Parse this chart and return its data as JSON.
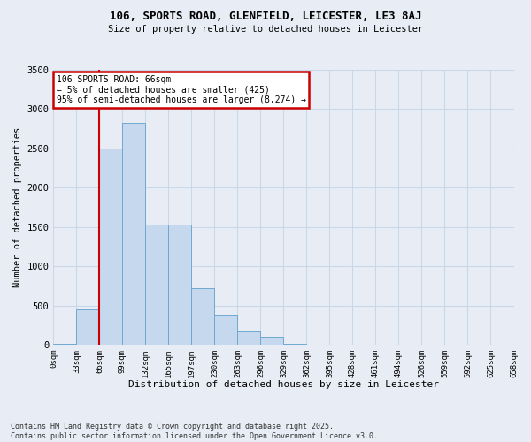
{
  "title1": "106, SPORTS ROAD, GLENFIELD, LEICESTER, LE3 8AJ",
  "title2": "Size of property relative to detached houses in Leicester",
  "xlabel": "Distribution of detached houses by size in Leicester",
  "ylabel": "Number of detached properties",
  "bin_labels": [
    "0sqm",
    "33sqm",
    "66sqm",
    "99sqm",
    "132sqm",
    "165sqm",
    "197sqm",
    "230sqm",
    "263sqm",
    "296sqm",
    "329sqm",
    "362sqm",
    "395sqm",
    "428sqm",
    "461sqm",
    "494sqm",
    "526sqm",
    "559sqm",
    "592sqm",
    "625sqm",
    "658sqm"
  ],
  "bar_values": [
    15,
    450,
    2500,
    2820,
    1530,
    1530,
    720,
    380,
    170,
    100,
    15,
    5,
    2,
    2,
    0,
    0,
    0,
    0,
    0,
    0
  ],
  "bar_color": "#c5d8ee",
  "bar_edge_color": "#6fa8d0",
  "grid_color": "#c8d8e8",
  "bg_color": "#e8edf5",
  "vline_x": 66,
  "annotation_text": "106 SPORTS ROAD: 66sqm\n← 5% of detached houses are smaller (425)\n95% of semi-detached houses are larger (8,274) →",
  "annotation_box_facecolor": "#ffffff",
  "annotation_box_edgecolor": "#cc0000",
  "vline_color": "#cc0000",
  "footer1": "Contains HM Land Registry data © Crown copyright and database right 2025.",
  "footer2": "Contains public sector information licensed under the Open Government Licence v3.0.",
  "ylim": [
    0,
    3500
  ],
  "xlim_min": 0,
  "xlim_max": 660,
  "bin_width": 33
}
